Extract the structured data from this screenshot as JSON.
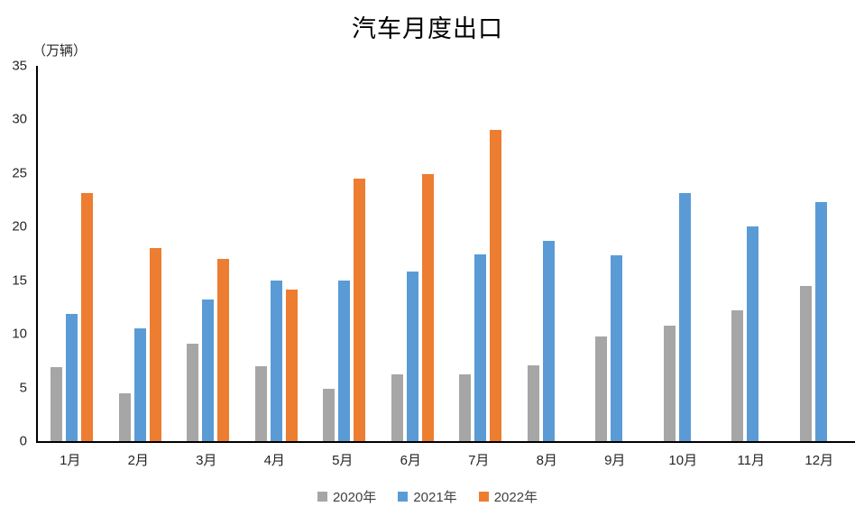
{
  "chart_data": {
    "type": "bar",
    "title": "汽车月度出口",
    "unit_label": "（万辆）",
    "categories": [
      "1月",
      "2月",
      "3月",
      "4月",
      "5月",
      "6月",
      "7月",
      "8月",
      "9月",
      "10月",
      "11月",
      "12月"
    ],
    "series": [
      {
        "name": "2020年",
        "color": "#a6a6a6",
        "values": [
          6.9,
          4.5,
          9.1,
          7.0,
          4.9,
          6.2,
          6.2,
          7.1,
          9.8,
          10.8,
          12.2,
          14.5
        ]
      },
      {
        "name": "2021年",
        "color": "#5b9bd5",
        "values": [
          11.9,
          10.5,
          13.2,
          15.0,
          15.0,
          15.8,
          17.4,
          18.7,
          17.3,
          23.1,
          20.0,
          22.3
        ]
      },
      {
        "name": "2022年",
        "color": "#ed7d31",
        "values": [
          23.1,
          18.0,
          17.0,
          14.1,
          24.5,
          24.9,
          29.0,
          null,
          null,
          null,
          null,
          null
        ]
      }
    ],
    "xlabel": "",
    "ylabel": "（万辆）",
    "ylim": [
      0,
      35
    ],
    "y_ticks": [
      0,
      5,
      10,
      15,
      20,
      25,
      30,
      35
    ],
    "grid": false,
    "legend_position": "bottom"
  }
}
